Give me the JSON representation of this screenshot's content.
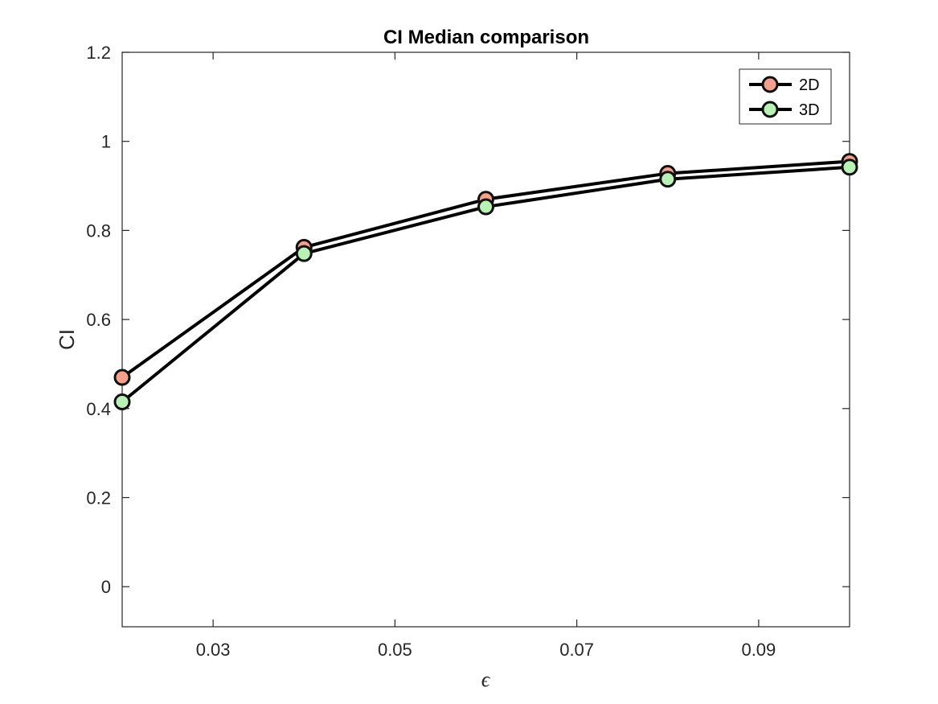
{
  "chart_data": {
    "type": "line",
    "title": "CI Median comparison",
    "xlabel": "ϵ",
    "ylabel": "CI",
    "xlim": [
      0.02,
      0.1
    ],
    "ylim": [
      -0.09,
      1.2
    ],
    "xticks": [
      0.03,
      0.05,
      0.07,
      0.09
    ],
    "xtick_labels": [
      "0.03",
      "0.05",
      "0.07",
      "0.09"
    ],
    "yticks": [
      0,
      0.2,
      0.4,
      0.6,
      0.8,
      1,
      1.2
    ],
    "ytick_labels": [
      "0",
      "0.2",
      "0.4",
      "0.6",
      "0.8",
      "1",
      "1.2"
    ],
    "grid": false,
    "legend_position": "top-right",
    "x": [
      0.02,
      0.04,
      0.06,
      0.08,
      0.1
    ],
    "series": [
      {
        "name": "2D",
        "values": [
          0.47,
          0.762,
          0.87,
          0.928,
          0.955
        ],
        "color": "#f4a08c"
      },
      {
        "name": "3D",
        "values": [
          0.415,
          0.748,
          0.853,
          0.915,
          0.942
        ],
        "color": "#b8f2b4"
      }
    ]
  }
}
